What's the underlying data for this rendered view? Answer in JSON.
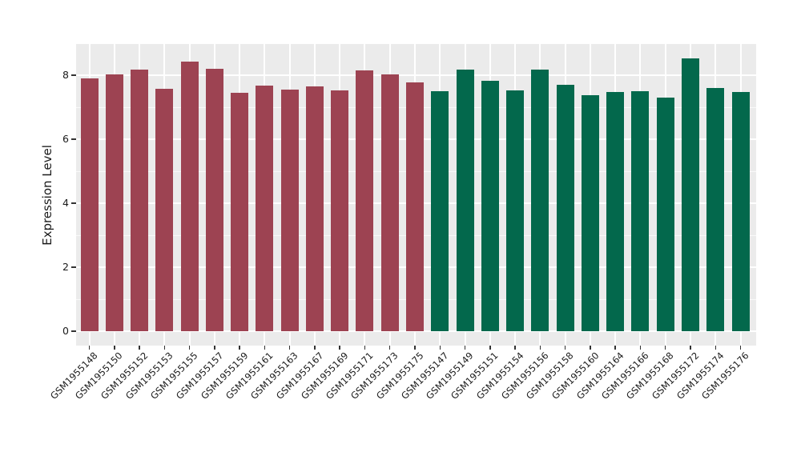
{
  "chart_data": {
    "type": "bar",
    "title": "",
    "xlabel": "",
    "ylabel": "Expression Level",
    "ylim": [
      0,
      9
    ],
    "yticks": [
      0,
      2,
      4,
      6,
      8
    ],
    "grid": "on",
    "legend": "none",
    "panel_background": "#EBEBEB",
    "gridline_color": "#FFFFFF",
    "axis_text_color": "#1A1A1A",
    "tick_mark_color": "#333333",
    "group_colors": [
      "#9D4352",
      "#03684C"
    ],
    "categories": [
      "GSM1955148",
      "GSM1955150",
      "GSM1955152",
      "GSM1955153",
      "GSM1955155",
      "GSM1955157",
      "GSM1955159",
      "GSM1955161",
      "GSM1955163",
      "GSM1955167",
      "GSM1955169",
      "GSM1955171",
      "GSM1955173",
      "GSM1955175",
      "GSM1955147",
      "GSM1955149",
      "GSM1955151",
      "GSM1955154",
      "GSM1955156",
      "GSM1955158",
      "GSM1955160",
      "GSM1955164",
      "GSM1955166",
      "GSM1955168",
      "GSM1955172",
      "GSM1955174",
      "GSM1955176"
    ],
    "values": [
      7.89,
      8.02,
      8.17,
      7.57,
      8.42,
      8.2,
      7.46,
      7.67,
      7.54,
      7.64,
      7.53,
      8.15,
      8.03,
      7.78,
      7.5,
      8.18,
      7.83,
      7.53,
      8.17,
      7.7,
      7.38,
      7.48,
      7.49,
      7.3,
      8.53,
      7.61,
      7.48
    ],
    "group_index": [
      0,
      0,
      0,
      0,
      0,
      0,
      0,
      0,
      0,
      0,
      0,
      0,
      0,
      0,
      1,
      1,
      1,
      1,
      1,
      1,
      1,
      1,
      1,
      1,
      1,
      1,
      1
    ]
  }
}
